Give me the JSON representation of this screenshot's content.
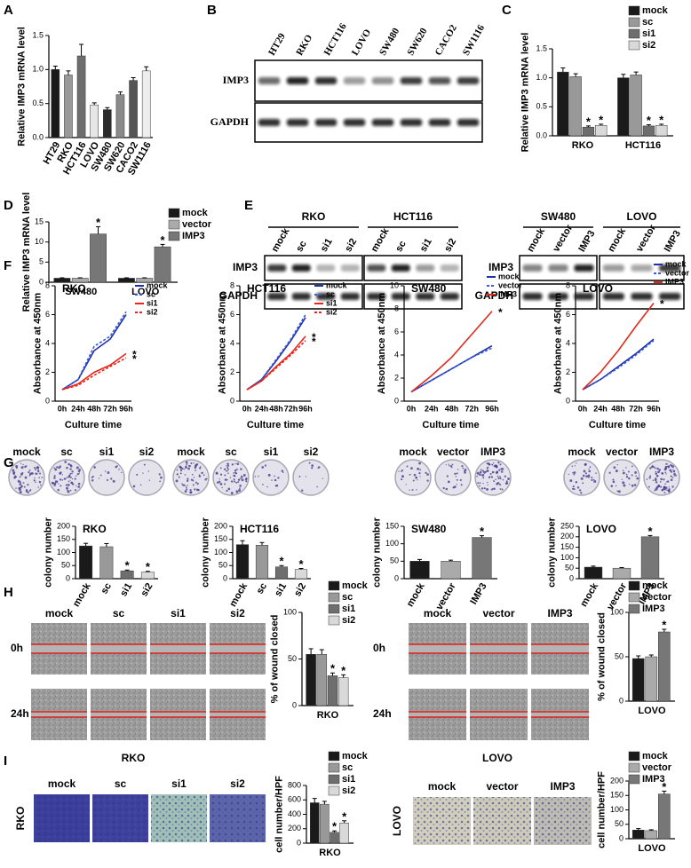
{
  "chart_data": [
    {
      "type": "bar",
      "ylabel": "Relative IMP3 mRNA level",
      "categories": [
        "HT29",
        "RKO",
        "HCT116",
        "LOVO",
        "SW480",
        "SW620",
        "CACO2",
        "SW1116"
      ],
      "values": [
        1.0,
        0.92,
        1.2,
        0.48,
        0.41,
        0.63,
        0.84,
        0.98
      ],
      "errors": [
        0.05,
        0.06,
        0.17,
        0.03,
        0.03,
        0.04,
        0.04,
        0.06
      ],
      "colors": [
        "#1a1a1a",
        "#999999",
        "#6e6e6e",
        "#e6e6e6",
        "#2b2b2b",
        "#8a8a8a",
        "#555555",
        "#eeeeee"
      ],
      "ylim": [
        0,
        1.5
      ],
      "yticks": [
        {
          "value": 0,
          "label": "0.0"
        },
        {
          "value": 0.5,
          "label": "0.5"
        },
        {
          "value": 1,
          "label": "1.0"
        },
        {
          "value": 1.5,
          "label": "1.5"
        }
      ]
    },
    {
      "type": "bar",
      "ylabel": "Relative IMP3 mRNA level",
      "marker": "*",
      "categories": [
        "RKO",
        "HCT116"
      ],
      "series": [
        {
          "name": "mock",
          "color": "#1a1a1a",
          "values": [
            1.1,
            1.0
          ],
          "errors": [
            0.07,
            0.06
          ],
          "significant": [
            false,
            false
          ]
        },
        {
          "name": "sc",
          "color": "#999999",
          "values": [
            1.02,
            1.05
          ],
          "errors": [
            0.05,
            0.05
          ],
          "significant": [
            false,
            false
          ]
        },
        {
          "name": "si1",
          "color": "#6e6e6e",
          "values": [
            0.15,
            0.17
          ],
          "errors": [
            0.02,
            0.02
          ],
          "significant": [
            true,
            true
          ]
        },
        {
          "name": "si2",
          "color": "#d9d9d9",
          "values": [
            0.18,
            0.18
          ],
          "errors": [
            0.02,
            0.02
          ],
          "significant": [
            true,
            true
          ]
        }
      ],
      "ylim": [
        0,
        1.5
      ],
      "yticks": [
        {
          "value": 0,
          "label": "0.0"
        },
        {
          "value": 0.5,
          "label": "0.5"
        },
        {
          "value": 1,
          "label": "1.0"
        },
        {
          "value": 1.5,
          "label": "1.5"
        }
      ]
    },
    {
      "type": "bar",
      "ylabel": "Relative IMP3 mRNA level",
      "marker": "*",
      "categories": [
        "SW480",
        "LOVO"
      ],
      "series": [
        {
          "name": "mock",
          "color": "#1a1a1a",
          "values": [
            1,
            1
          ],
          "errors": [
            0.1,
            0.1
          ],
          "significant": [
            false,
            false
          ]
        },
        {
          "name": "vector",
          "color": "#aaaaaa",
          "values": [
            1,
            1
          ],
          "errors": [
            0.1,
            0.1
          ],
          "significant": [
            false,
            false
          ]
        },
        {
          "name": "IMP3",
          "color": "#777777",
          "values": [
            12,
            8.8
          ],
          "errors": [
            1.8,
            0.6
          ],
          "significant": [
            true,
            true
          ]
        }
      ],
      "ylim": [
        0,
        15
      ],
      "yticks": [
        0,
        5,
        10,
        15
      ]
    },
    {
      "type": "line",
      "title": "RKO",
      "ylabel": "Absorbance at 450nm",
      "xlabel": "Culture time",
      "marker": "*",
      "categories": [
        "0h",
        "24h",
        "48h",
        "72h",
        "96h"
      ],
      "series": [
        {
          "name": "mock",
          "color": "#1f2fa8",
          "dash": false,
          "values": [
            0.8,
            1.5,
            3.5,
            4.3,
            6.0
          ],
          "significant": false
        },
        {
          "name": "sc",
          "color": "#3a5ad8",
          "dash": true,
          "values": [
            0.8,
            1.5,
            3.8,
            4.5,
            6.2
          ],
          "significant": false
        },
        {
          "name": "si1",
          "color": "#e8261c",
          "dash": false,
          "values": [
            0.8,
            1.2,
            2.0,
            2.5,
            3.3
          ],
          "significant": true
        },
        {
          "name": "si2",
          "color": "#e8261c",
          "dash": true,
          "values": [
            0.8,
            1.1,
            1.8,
            2.4,
            3.0
          ],
          "significant": true
        }
      ],
      "ylim": [
        0,
        8
      ],
      "yticks": [
        0,
        2,
        4,
        6,
        8
      ]
    },
    {
      "type": "line",
      "title": "HCT116",
      "ylabel": "Absorbance at 450nm",
      "xlabel": "Culture time",
      "marker": "*",
      "categories": [
        "0h",
        "24h",
        "48h",
        "72h",
        "96h"
      ],
      "series": [
        {
          "name": "mock",
          "color": "#1f2fa8",
          "dash": false,
          "values": [
            0.8,
            1.5,
            2.8,
            4.2,
            5.8
          ],
          "significant": false
        },
        {
          "name": "sc",
          "color": "#3a5ad8",
          "dash": true,
          "values": [
            0.8,
            1.5,
            2.9,
            4.3,
            6.0
          ],
          "significant": false
        },
        {
          "name": "si1",
          "color": "#e8261c",
          "dash": false,
          "values": [
            0.8,
            1.4,
            2.4,
            3.3,
            4.5
          ],
          "significant": true
        },
        {
          "name": "si2",
          "color": "#e8261c",
          "dash": true,
          "values": [
            0.8,
            1.4,
            2.3,
            3.2,
            4.2
          ],
          "significant": true
        }
      ],
      "ylim": [
        0,
        8
      ],
      "yticks": [
        0,
        2,
        4,
        6,
        8
      ]
    },
    {
      "type": "line",
      "title": "SW480",
      "ylabel": "Absorbance at 450nm",
      "xlabel": "Culture time",
      "marker": "*",
      "categories": [
        "0h",
        "24h",
        "48h",
        "72h",
        "96h"
      ],
      "series": [
        {
          "name": "mock",
          "color": "#1f2fa8",
          "dash": false,
          "values": [
            0.8,
            1.8,
            2.8,
            3.8,
            4.8
          ],
          "significant": false
        },
        {
          "name": "vector",
          "color": "#3a5ad8",
          "dash": true,
          "values": [
            0.8,
            1.8,
            2.8,
            3.8,
            4.6
          ],
          "significant": false
        },
        {
          "name": "IMP3",
          "color": "#e02a1c",
          "dash": false,
          "values": [
            0.8,
            2.2,
            3.8,
            5.8,
            7.8
          ],
          "significant": true
        }
      ],
      "ylim": [
        0,
        10
      ],
      "yticks": [
        0,
        2,
        4,
        6,
        8,
        10
      ]
    },
    {
      "type": "line",
      "title": "LOVO",
      "ylabel": "Absorbance at 450nm",
      "xlabel": "Culture time",
      "marker": "*",
      "categories": [
        "0h",
        "24h",
        "48h",
        "72h",
        "96h"
      ],
      "series": [
        {
          "name": "mock",
          "color": "#1f2fa8",
          "dash": false,
          "values": [
            0.8,
            1.5,
            2.4,
            3.3,
            4.3
          ],
          "significant": false
        },
        {
          "name": "vector",
          "color": "#3a5ad8",
          "dash": true,
          "values": [
            0.8,
            1.5,
            2.3,
            3.2,
            4.2
          ],
          "significant": false
        },
        {
          "name": "IMP3",
          "color": "#e02a1c",
          "dash": false,
          "values": [
            0.8,
            2.0,
            3.5,
            5.2,
            6.8
          ],
          "significant": true
        }
      ],
      "ylim": [
        0,
        8
      ],
      "yticks": [
        0,
        2,
        4,
        6,
        8
      ]
    },
    {
      "type": "bar",
      "title": "RKO",
      "ylabel": "colony number",
      "marker": "*",
      "categories": [
        "mock",
        "sc",
        "si1",
        "si2"
      ],
      "values": [
        125,
        122,
        30,
        25
      ],
      "errors": [
        10,
        12,
        3,
        3
      ],
      "colors": [
        "#1a1a1a",
        "#999999",
        "#6e6e6e",
        "#d9d9d9"
      ],
      "significant": [
        false,
        false,
        true,
        true
      ],
      "ylim": [
        0,
        200
      ],
      "yticks": [
        0,
        50,
        100,
        150,
        200
      ]
    },
    {
      "type": "bar",
      "title": "HCT116",
      "ylabel": "colony number",
      "marker": "*",
      "categories": [
        "mock",
        "sc",
        "si1",
        "si2"
      ],
      "values": [
        130,
        128,
        45,
        35
      ],
      "errors": [
        15,
        10,
        5,
        4
      ],
      "colors": [
        "#1a1a1a",
        "#999999",
        "#6e6e6e",
        "#d9d9d9"
      ],
      "significant": [
        false,
        false,
        true,
        true
      ],
      "ylim": [
        0,
        200
      ],
      "yticks": [
        0,
        50,
        100,
        150,
        200
      ]
    },
    {
      "type": "bar",
      "title": "SW480",
      "ylabel": "colony number",
      "marker": "*",
      "categories": [
        "mock",
        "vector",
        "IMP3"
      ],
      "values": [
        50,
        50,
        118
      ],
      "errors": [
        5,
        3,
        5
      ],
      "colors": [
        "#1a1a1a",
        "#aaaaaa",
        "#777777"
      ],
      "significant": [
        false,
        false,
        true
      ],
      "ylim": [
        0,
        150
      ],
      "yticks": [
        0,
        50,
        100,
        150
      ]
    },
    {
      "type": "bar",
      "title": "LOVO",
      "ylabel": "colony number",
      "marker": "*",
      "categories": [
        "mock",
        "vector",
        "IMP3"
      ],
      "values": [
        55,
        50,
        200
      ],
      "errors": [
        5,
        3,
        6
      ],
      "colors": [
        "#1a1a1a",
        "#aaaaaa",
        "#777777"
      ],
      "significant": [
        false,
        false,
        true
      ],
      "ylim": [
        0,
        250
      ],
      "yticks": [
        0,
        50,
        100,
        150,
        200,
        250
      ]
    },
    {
      "type": "bar",
      "ylabel": "% of wound closed",
      "marker": "*",
      "categories": [
        "RKO"
      ],
      "series": [
        {
          "name": "mock",
          "color": "#1a1a1a",
          "values": [
            55
          ],
          "errors": [
            6
          ],
          "significant": [
            false
          ]
        },
        {
          "name": "sc",
          "color": "#999999",
          "values": [
            55
          ],
          "errors": [
            5
          ],
          "significant": [
            false
          ]
        },
        {
          "name": "si1",
          "color": "#6e6e6e",
          "values": [
            32
          ],
          "errors": [
            3
          ],
          "significant": [
            true
          ]
        },
        {
          "name": "si2",
          "color": "#d9d9d9",
          "values": [
            30
          ],
          "errors": [
            3
          ],
          "significant": [
            true
          ]
        }
      ],
      "ylim": [
        0,
        100
      ],
      "yticks": [
        0,
        50,
        100
      ]
    },
    {
      "type": "bar",
      "ylabel": "% of wound closed",
      "marker": "*",
      "categories": [
        "LOVO"
      ],
      "series": [
        {
          "name": "mock",
          "color": "#1a1a1a",
          "values": [
            48
          ],
          "errors": [
            3
          ],
          "significant": [
            false
          ]
        },
        {
          "name": "vector",
          "color": "#aaaaaa",
          "values": [
            50
          ],
          "errors": [
            2
          ],
          "significant": [
            false
          ]
        },
        {
          "name": "IMP3",
          "color": "#777777",
          "values": [
            78
          ],
          "errors": [
            3
          ],
          "significant": [
            true
          ]
        }
      ],
      "ylim": [
        0,
        100
      ],
      "yticks": [
        0,
        50,
        100
      ]
    },
    {
      "type": "bar",
      "ylabel": "cell number/HPF",
      "marker": "*",
      "categories": [
        "RKO"
      ],
      "series": [
        {
          "name": "mock",
          "color": "#1a1a1a",
          "values": [
            560
          ],
          "errors": [
            60
          ],
          "significant": [
            false
          ]
        },
        {
          "name": "sc",
          "color": "#999999",
          "values": [
            540
          ],
          "errors": [
            40
          ],
          "significant": [
            false
          ]
        },
        {
          "name": "si1",
          "color": "#6e6e6e",
          "values": [
            150
          ],
          "errors": [
            20
          ],
          "significant": [
            true
          ]
        },
        {
          "name": "si2",
          "color": "#d9d9d9",
          "values": [
            280
          ],
          "errors": [
            30
          ],
          "significant": [
            true
          ]
        }
      ],
      "ylim": [
        0,
        800
      ],
      "yticks": [
        0,
        200,
        400,
        600,
        800
      ]
    },
    {
      "type": "bar",
      "ylabel": "cell number/HPF",
      "marker": "*",
      "categories": [
        "LOVO"
      ],
      "series": [
        {
          "name": "mock",
          "color": "#1a1a1a",
          "values": [
            30
          ],
          "errors": [
            5
          ],
          "significant": [
            false
          ]
        },
        {
          "name": "vector",
          "color": "#aaaaaa",
          "values": [
            28
          ],
          "errors": [
            3
          ],
          "significant": [
            false
          ]
        },
        {
          "name": "IMP3",
          "color": "#777777",
          "values": [
            155
          ],
          "errors": [
            10
          ],
          "significant": [
            true
          ]
        }
      ],
      "ylim": [
        0,
        200
      ],
      "yticks": [
        0,
        50,
        100,
        150,
        200
      ]
    }
  ],
  "figure": {
    "panel_labels": [
      "A",
      "B",
      "C",
      "D",
      "E",
      "F",
      "G",
      "H",
      "I"
    ],
    "blot_b": {
      "lanes": [
        "HT29",
        "RKO",
        "HCT116",
        "LOVO",
        "SW480",
        "SW620",
        "CACO2",
        "SW1116"
      ],
      "rows": [
        "IMP3",
        "GAPDH"
      ]
    },
    "blot_e": {
      "rows": [
        "IMP3",
        "GAPDH"
      ],
      "groups": [
        {
          "name": "RKO",
          "lanes": [
            "mock",
            "sc",
            "si1",
            "si2"
          ]
        },
        {
          "name": "HCT116",
          "lanes": [
            "mock",
            "sc",
            "si1",
            "si2"
          ]
        },
        {
          "name": "SW480",
          "lanes": [
            "mock",
            "vector",
            "IMP3"
          ]
        },
        {
          "name": "LOVO",
          "lanes": [
            "mock",
            "vector",
            "IMP3"
          ]
        }
      ]
    },
    "colonies": [
      {
        "lanes": [
          "mock",
          "sc",
          "si1",
          "si2"
        ]
      },
      {
        "lanes": [
          "mock",
          "sc",
          "si1",
          "si2"
        ]
      },
      {
        "lanes": [
          "mock",
          "vector",
          "IMP3"
        ]
      },
      {
        "lanes": [
          "mock",
          "vector",
          "IMP3"
        ]
      }
    ],
    "wound": {
      "rows": [
        "0h",
        "24h"
      ],
      "panels": [
        {
          "cell": "RKO",
          "lanes": [
            "mock",
            "sc",
            "si1",
            "si2"
          ]
        },
        {
          "cell": "LOVO",
          "lanes": [
            "mock",
            "vector",
            "IMP3"
          ]
        }
      ]
    },
    "transwell": [
      {
        "cell": "RKO",
        "lanes": [
          "mock",
          "sc",
          "si1",
          "si2"
        ]
      },
      {
        "cell": "LOVO",
        "lanes": [
          "mock",
          "vector",
          "IMP3"
        ]
      }
    ]
  }
}
